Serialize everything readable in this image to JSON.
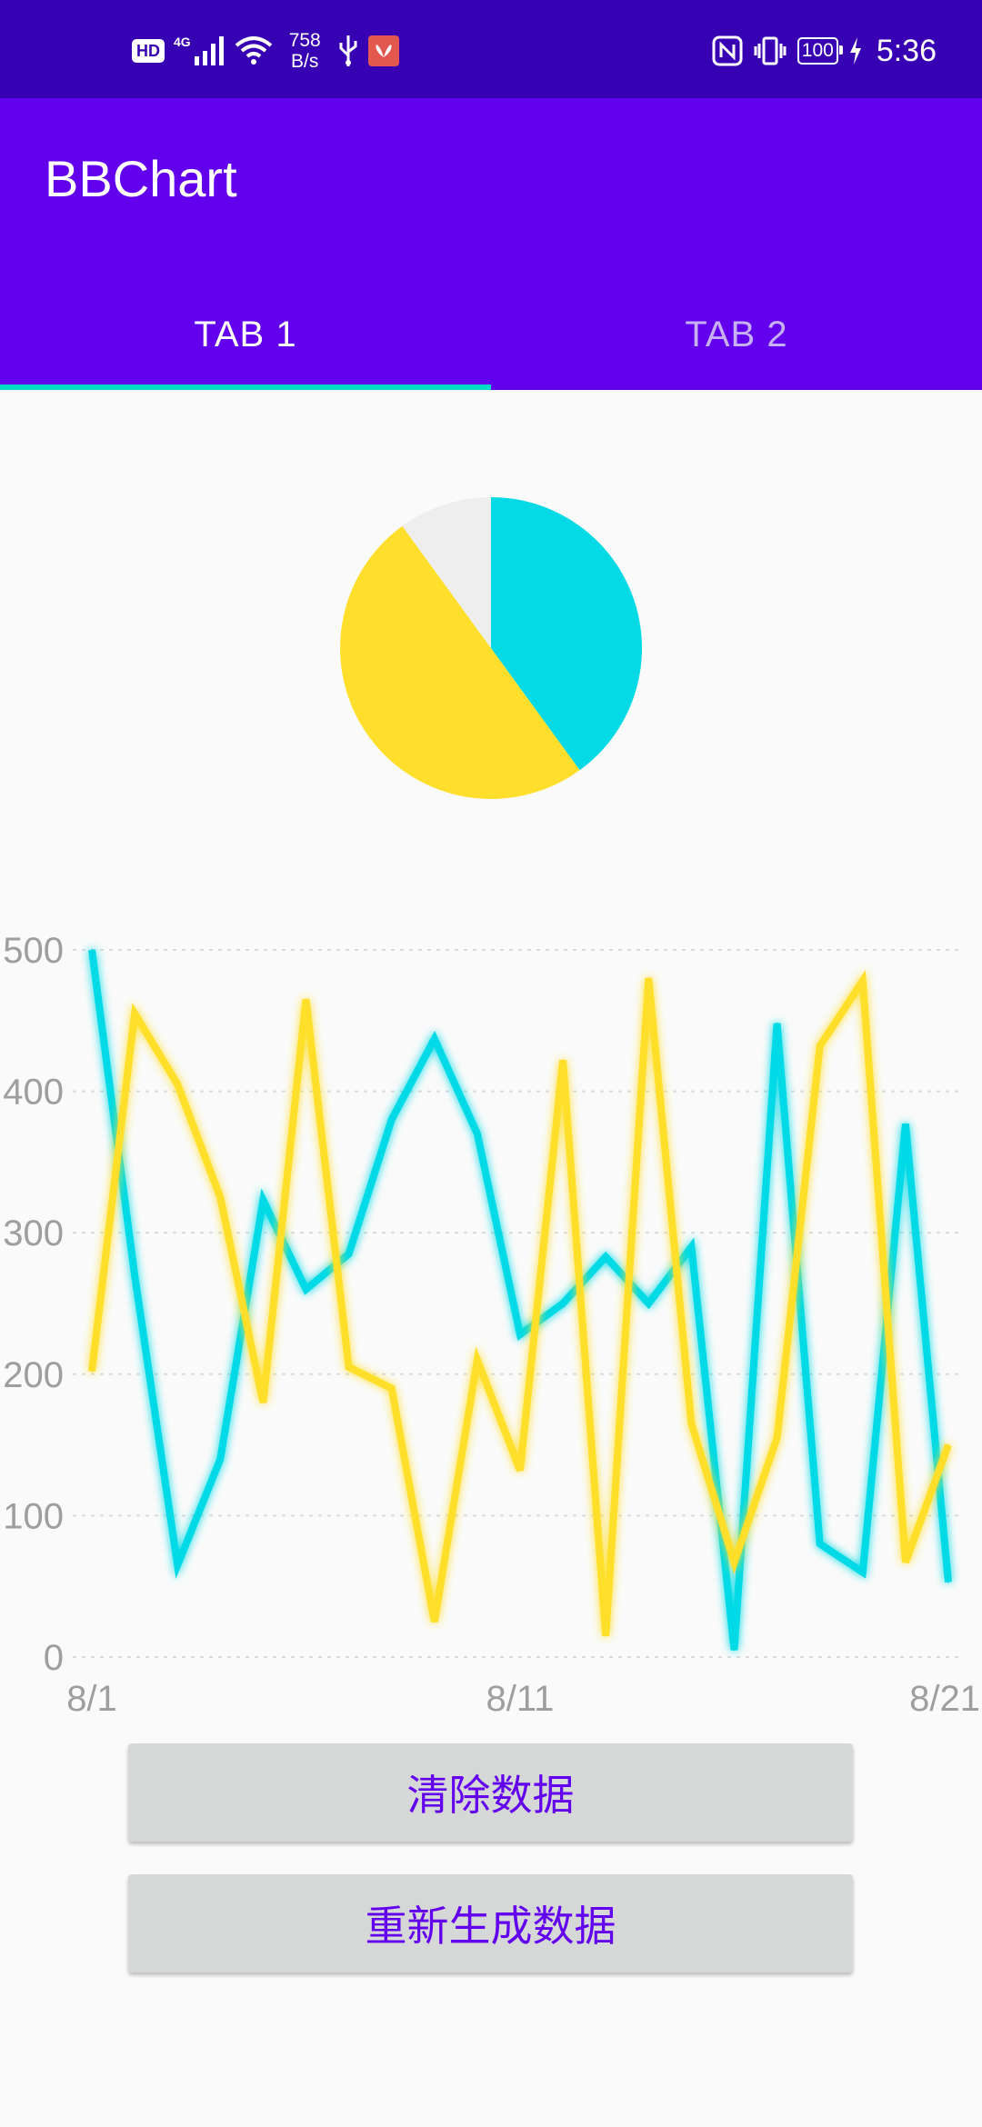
{
  "status_bar": {
    "hd": "HD",
    "network": "4G",
    "speed_value": "758",
    "speed_unit": "B/s",
    "battery": "100",
    "time": "5:36",
    "icons": [
      "signal-icon",
      "wifi-icon",
      "usb-icon",
      "huawei-app-icon",
      "nfc-icon",
      "vibrate-icon",
      "charging-icon"
    ]
  },
  "app_bar": {
    "title": "BBChart",
    "tabs": [
      {
        "label": "TAB 1",
        "selected": true
      },
      {
        "label": "TAB 2",
        "selected": false
      }
    ]
  },
  "colors": {
    "status_bar": "#3700B3",
    "primary": "#6200EE",
    "accent": "#03DAC5",
    "series_cyan": "#03DAE6",
    "series_yellow": "#FFDF2C",
    "pie_gray": "#EEEEEE",
    "button_bg": "#D6D7D7"
  },
  "chart_data": [
    {
      "type": "pie",
      "slices": [
        {
          "value": 40,
          "color": "#03DAE6"
        },
        {
          "value": 50,
          "color": "#FFDF2C"
        },
        {
          "value": 10,
          "color": "#EEEEEE"
        }
      ]
    },
    {
      "type": "line",
      "x": [
        "8/1",
        "8/2",
        "8/3",
        "8/4",
        "8/5",
        "8/6",
        "8/7",
        "8/8",
        "8/9",
        "8/10",
        "8/11",
        "8/12",
        "8/13",
        "8/14",
        "8/15",
        "8/16",
        "8/17",
        "8/18",
        "8/19",
        "8/20",
        "8/21"
      ],
      "x_tick_labels": [
        "8/1",
        "8/11",
        "8/21"
      ],
      "y_tick_labels": [
        "0",
        "100",
        "200",
        "300",
        "400",
        "500"
      ],
      "ylim": [
        0,
        500
      ],
      "grid": true,
      "series": [
        {
          "color": "#03DAE6",
          "values": [
            500,
            270,
            65,
            140,
            323,
            260,
            285,
            380,
            437,
            370,
            228,
            250,
            283,
            250,
            290,
            5,
            448,
            80,
            60,
            377,
            53
          ]
        },
        {
          "color": "#FFDF2C",
          "values": [
            202,
            455,
            405,
            325,
            180,
            465,
            205,
            190,
            25,
            210,
            132,
            422,
            15,
            480,
            165,
            67,
            155,
            432,
            478,
            67,
            150
          ]
        }
      ]
    }
  ],
  "buttons": {
    "clear": "清除数据",
    "regenerate": "重新生成数据"
  }
}
